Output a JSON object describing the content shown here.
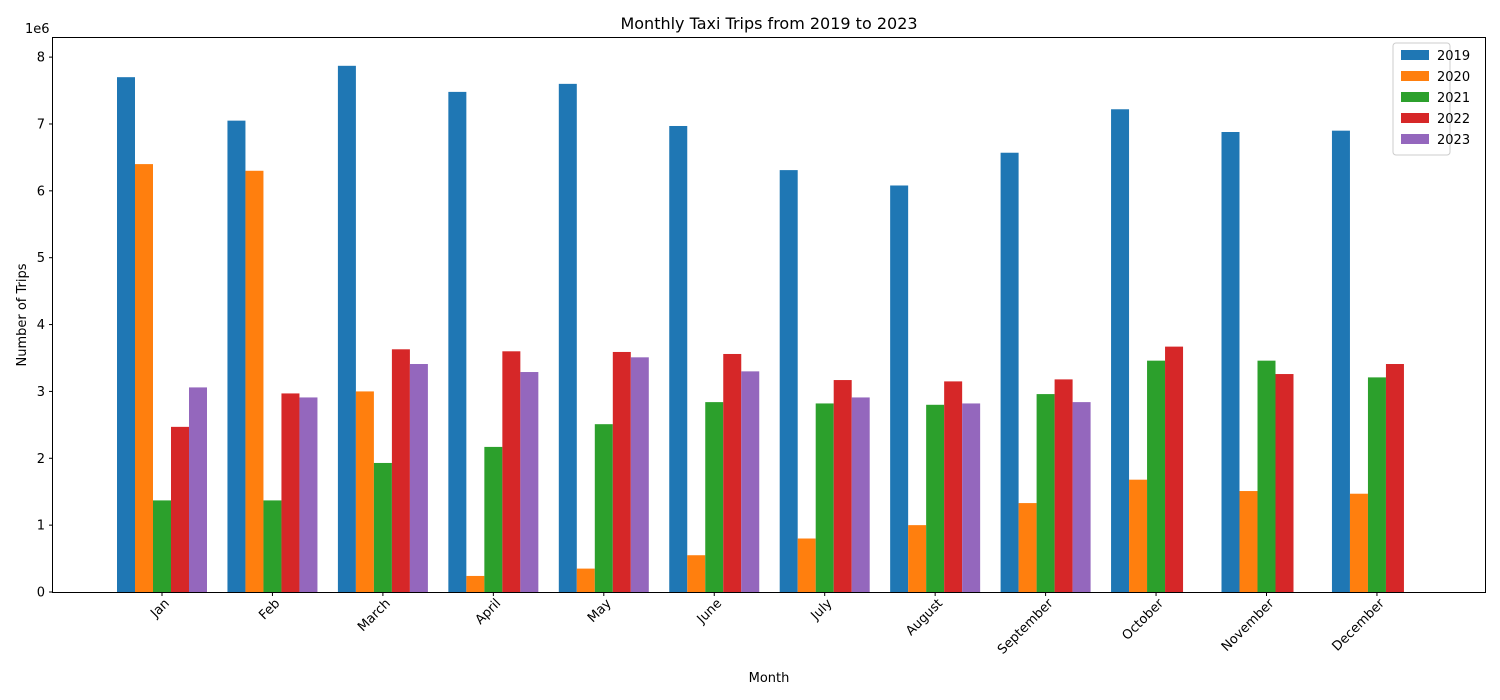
{
  "chart_data": {
    "type": "bar",
    "title": "Monthly Taxi Trips from 2019 to 2023",
    "xlabel": "Month",
    "ylabel": "Number of Trips",
    "y_offset_text": "1e6",
    "ylim": [
      0,
      8.3
    ],
    "yticks": [
      "0",
      "1",
      "2",
      "3",
      "4",
      "5",
      "6",
      "7",
      "8"
    ],
    "y_unit_multiplier": 1000000,
    "categories": [
      "Jan",
      "Feb",
      "March",
      "April",
      "May",
      "June",
      "July",
      "August",
      "September",
      "October",
      "November",
      "December"
    ],
    "legend_position": "top-right",
    "grid": false,
    "series": [
      {
        "name": "2019",
        "color": "#1f77b4",
        "values": [
          7.7,
          7.05,
          7.87,
          7.48,
          7.6,
          6.97,
          6.31,
          6.08,
          6.57,
          7.22,
          6.88,
          6.9
        ]
      },
      {
        "name": "2020",
        "color": "#ff7f0e",
        "values": [
          6.4,
          6.3,
          3.0,
          0.24,
          0.35,
          0.55,
          0.8,
          1.0,
          1.33,
          1.68,
          1.51,
          1.47
        ]
      },
      {
        "name": "2021",
        "color": "#2ca02c",
        "values": [
          1.37,
          1.37,
          1.93,
          2.17,
          2.51,
          2.84,
          2.82,
          2.8,
          2.96,
          3.46,
          3.46,
          3.21
        ]
      },
      {
        "name": "2022",
        "color": "#d62728",
        "values": [
          2.47,
          2.97,
          3.63,
          3.6,
          3.59,
          3.56,
          3.17,
          3.15,
          3.18,
          3.67,
          3.26,
          3.41
        ]
      },
      {
        "name": "2023",
        "color": "#9467bd",
        "values": [
          3.06,
          2.91,
          3.41,
          3.29,
          3.51,
          3.3,
          2.91,
          2.82,
          2.84,
          null,
          null,
          null
        ]
      }
    ]
  }
}
